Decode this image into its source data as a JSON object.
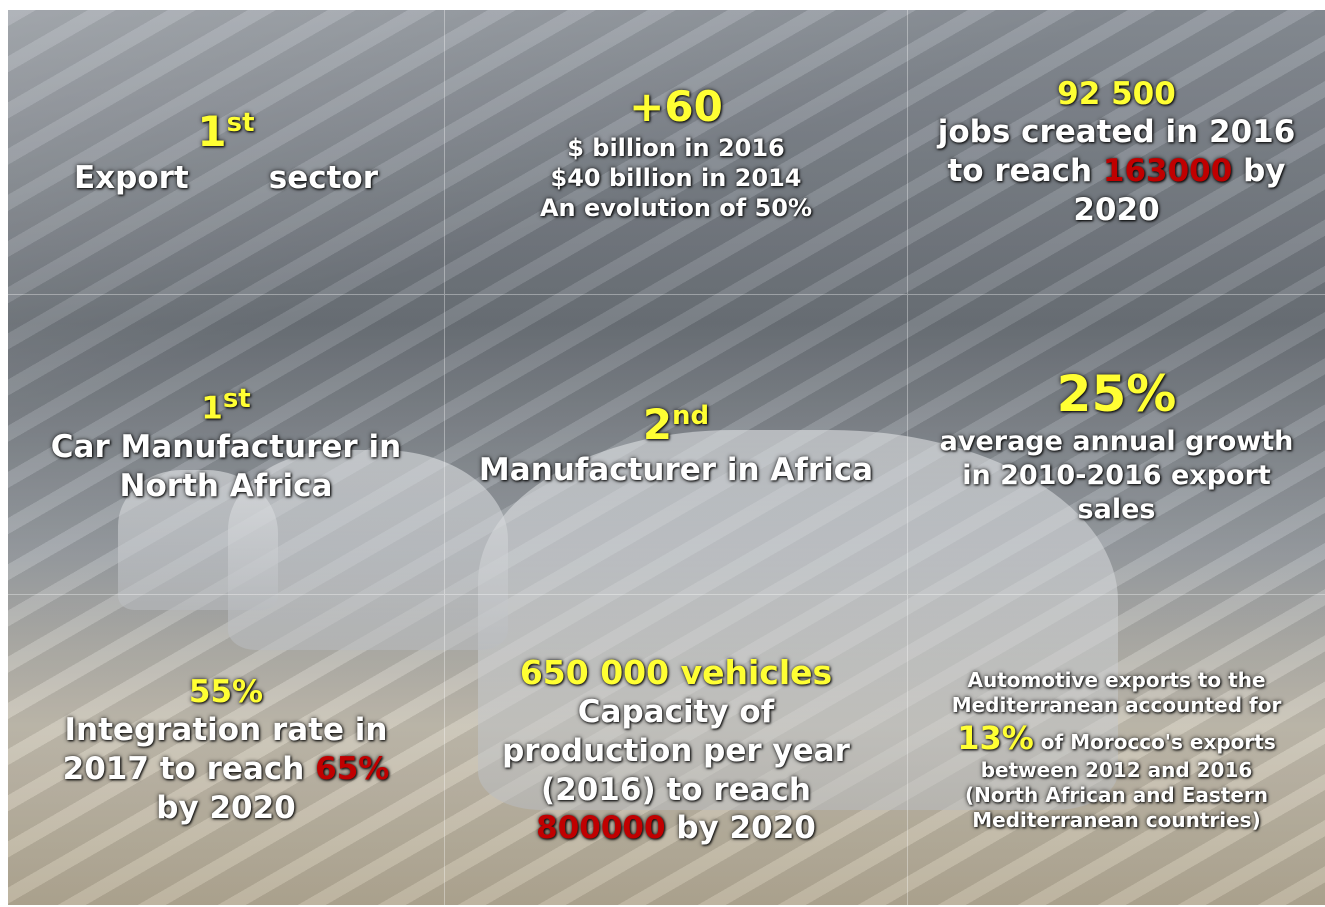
{
  "cells": [
    {
      "headline": "1",
      "sup": "st",
      "words": [
        "Export",
        "sector"
      ]
    },
    {
      "headline": "+60",
      "lines": [
        "$ billion in 2016",
        "$40 billion in 2014",
        "An evolution of 50%"
      ]
    },
    {
      "headline": "92 500",
      "lines": [
        "jobs created in 2016"
      ],
      "pre": "to reach",
      "highlight": "163000",
      "post": "by",
      "last": "2020"
    },
    {
      "headline": "1",
      "sup": "st",
      "lines": [
        "Car Manufacturer in",
        "North Africa"
      ]
    },
    {
      "headline": "2",
      "sup": "nd",
      "lines": [
        "Manufacturer in Africa"
      ]
    },
    {
      "headline": "25%",
      "lines": [
        "average annual growth",
        "in 2010-2016 export",
        "sales"
      ]
    },
    {
      "headline": "55%",
      "lines": [
        "Integration rate in"
      ],
      "pre": "2017 to reach",
      "highlight": "65%",
      "last": "by 2020"
    },
    {
      "headline": "650 000 vehicles",
      "lines": [
        "Capacity of",
        "production per year",
        "(2016) to reach"
      ],
      "highlight": "800000",
      "post": "by 2020"
    },
    {
      "lines": [
        "Automotive exports to the",
        "Mediterranean accounted for"
      ],
      "highlight": "13%",
      "post": "of Morocco's exports",
      "tail": [
        "between 2012 and 2016",
        "(North African and Eastern",
        "Mediterranean countries)"
      ]
    }
  ]
}
